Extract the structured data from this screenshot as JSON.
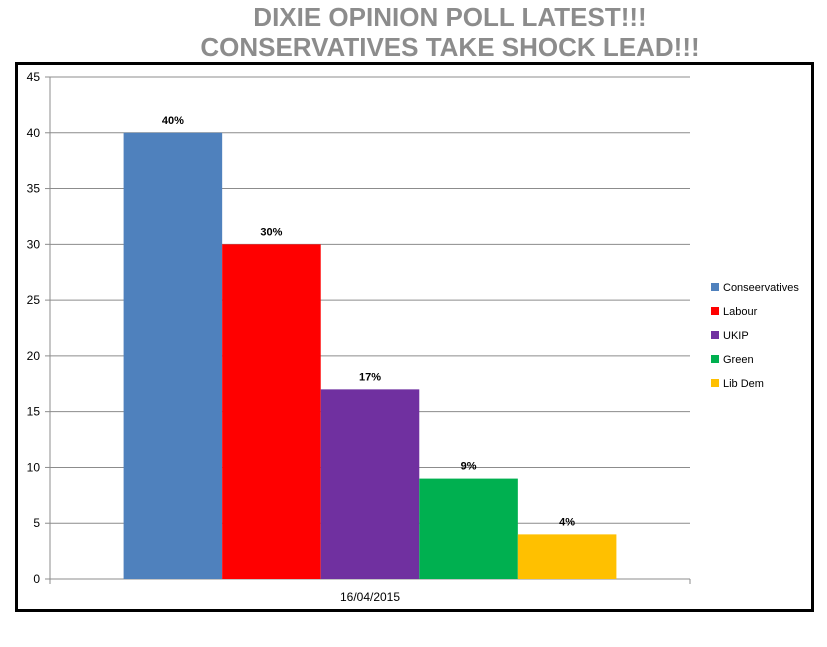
{
  "chart_data": {
    "type": "bar",
    "title_lines": [
      "DIXIE OPINION POLL LATEST!!!",
      "CONSERVATIVES TAKE SHOCK LEAD!!!"
    ],
    "categories": [
      "16/04/2015"
    ],
    "series": [
      {
        "name": "Conseervatives",
        "values": [
          40
        ],
        "label": "40%",
        "color": "#4f81bd"
      },
      {
        "name": "Labour",
        "values": [
          30
        ],
        "label": "30%",
        "color": "#ff0000"
      },
      {
        "name": "UKIP",
        "values": [
          17
        ],
        "label": "17%",
        "color": "#7030a0"
      },
      {
        "name": "Green",
        "values": [
          9
        ],
        "label": "9%",
        "color": "#00b050"
      },
      {
        "name": "Lib Dem",
        "values": [
          4
        ],
        "label": "4%",
        "color": "#ffc000"
      }
    ],
    "ylim": [
      0,
      45
    ],
    "yticks": [
      "0",
      "5",
      "10",
      "15",
      "20",
      "25",
      "30",
      "35",
      "40",
      "45"
    ],
    "grid": true,
    "legend_position": "right"
  }
}
